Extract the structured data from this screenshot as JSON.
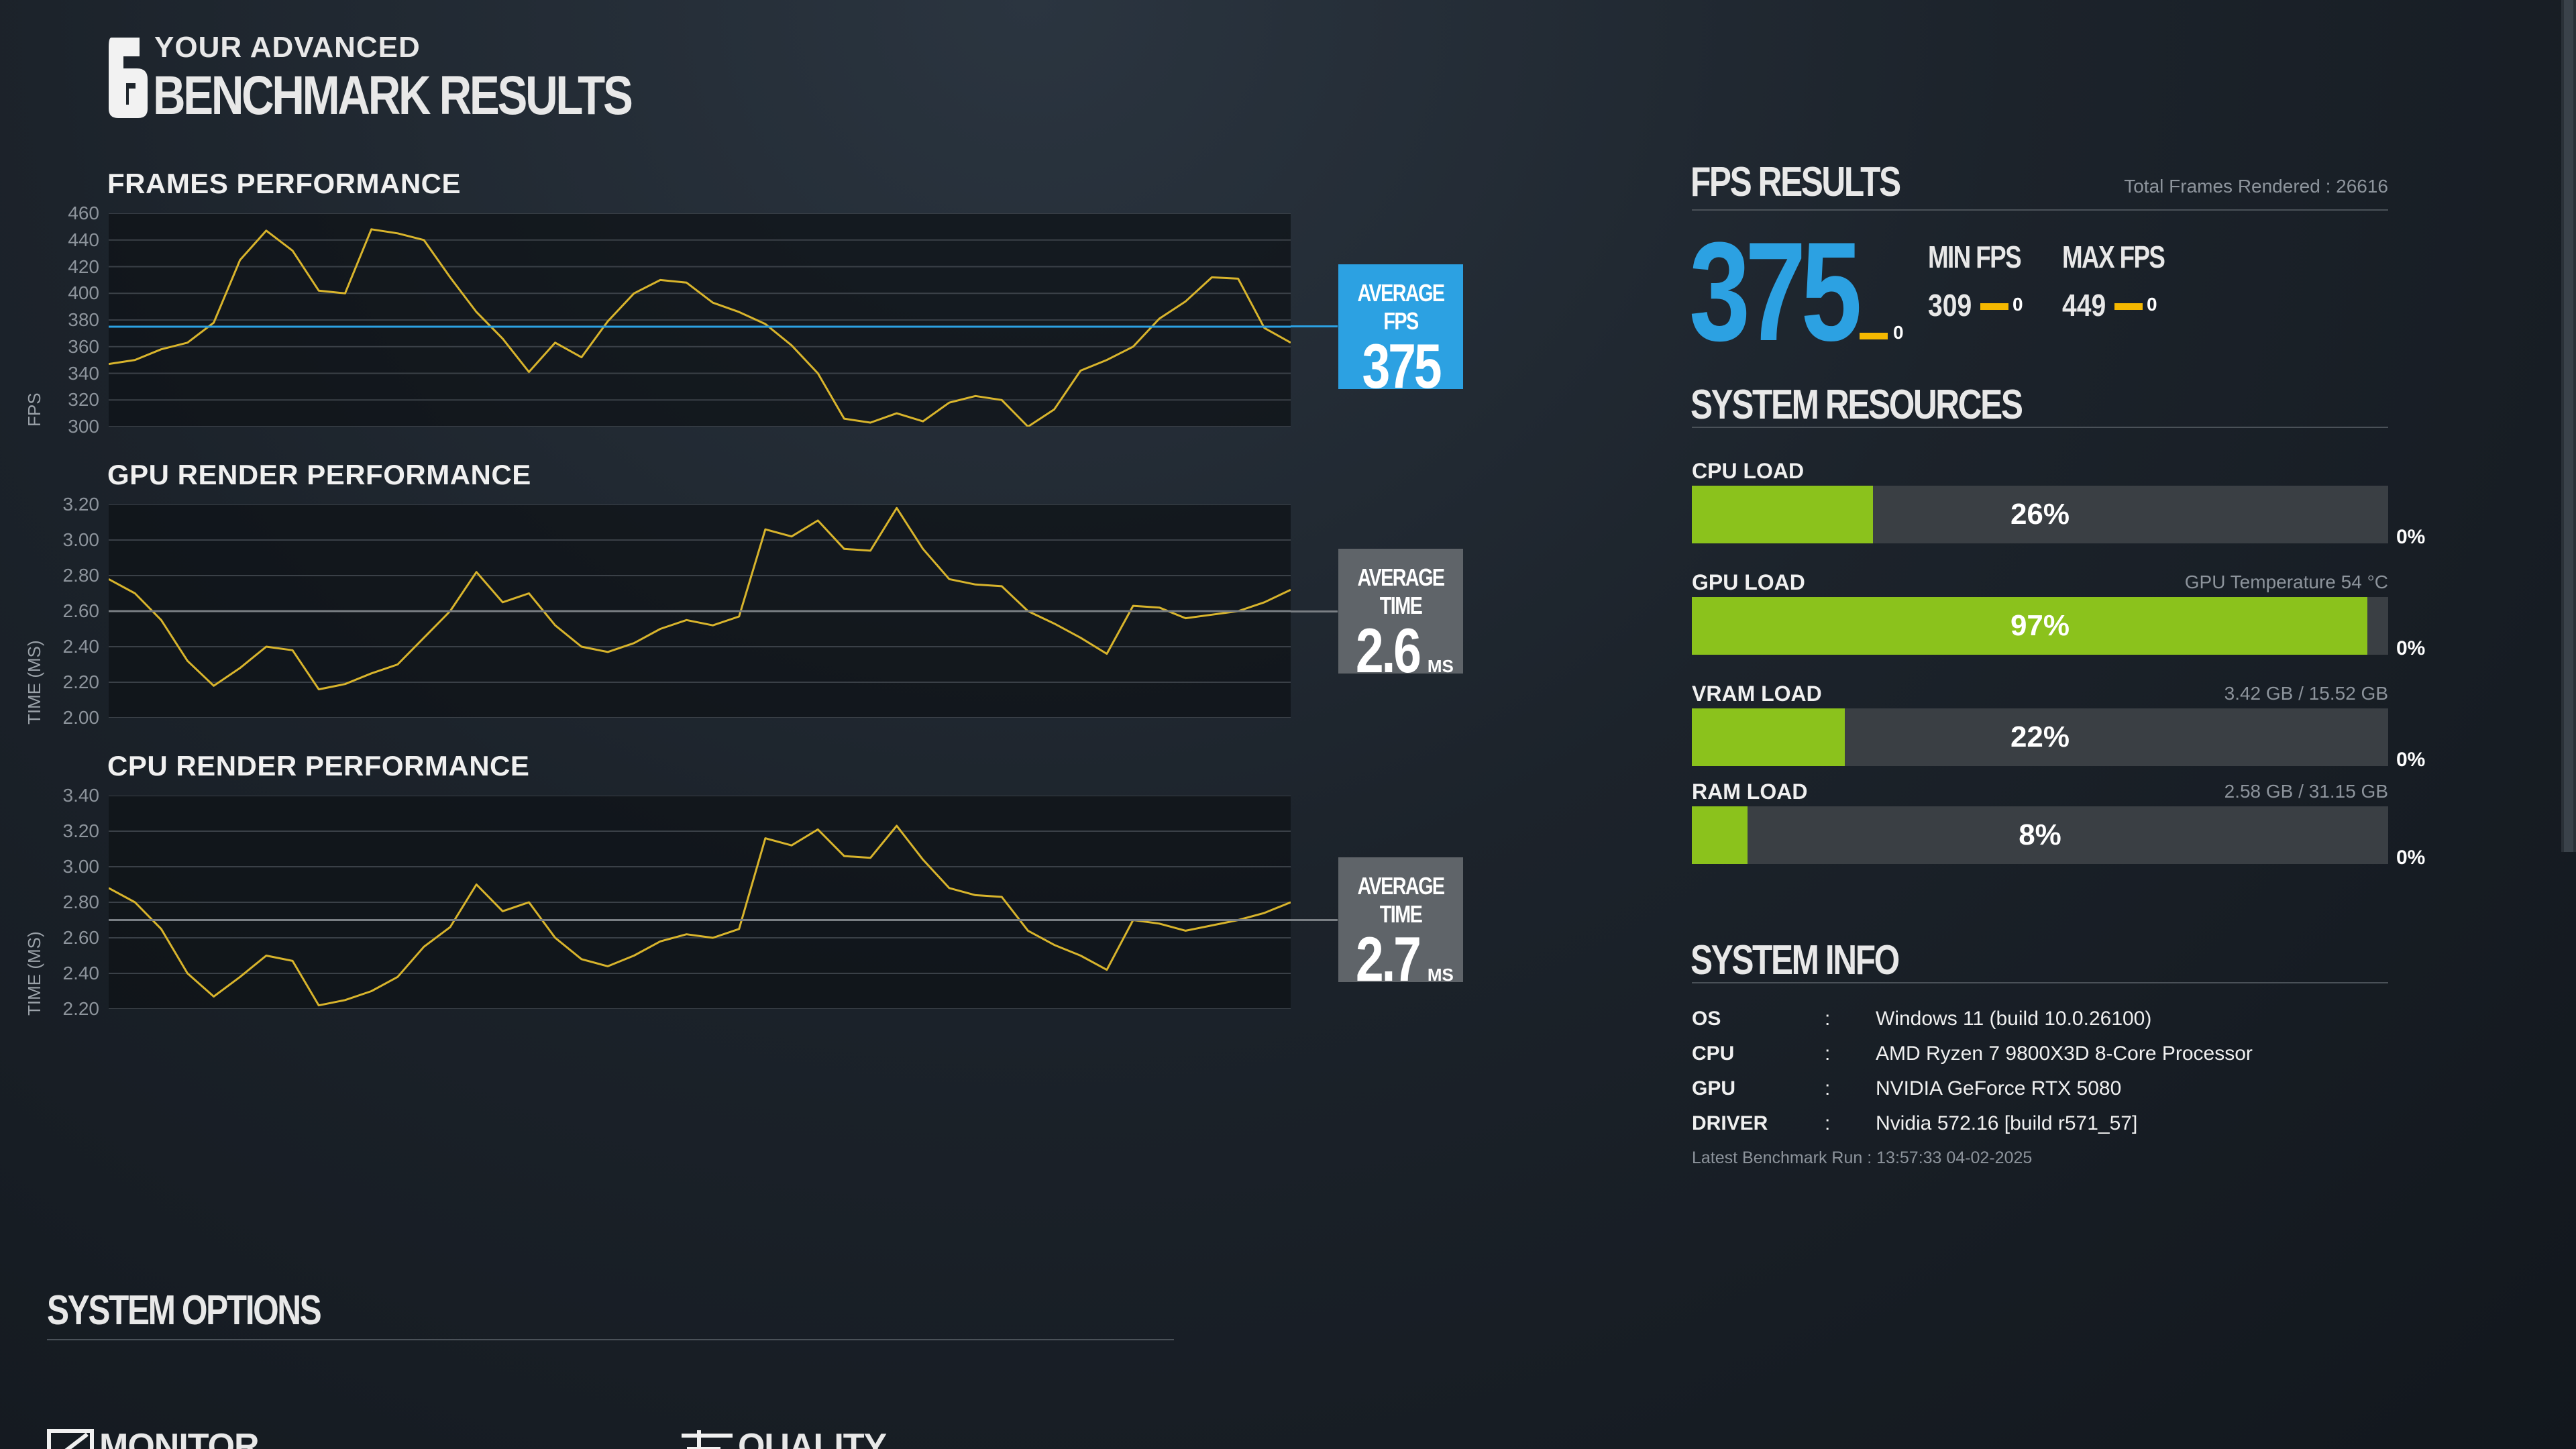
{
  "header": {
    "line1": "YOUR ADVANCED",
    "line2": "BENCHMARK RESULTS",
    "logo_icon": "siege-six-logo-icon"
  },
  "frames": {
    "title": "FRAMES PERFORMANCE",
    "yaxis_title": "FPS",
    "yticks": [
      "460",
      "440",
      "420",
      "400",
      "380",
      "360",
      "340",
      "320",
      "300"
    ],
    "avg_label": "AVERAGE FPS",
    "avg_value": "375",
    "avg_color": "#2ca1e2",
    "chart_data": {
      "type": "line",
      "ylim": [
        300,
        460
      ],
      "avg": 375,
      "x": [
        0,
        20,
        40,
        60,
        80,
        100,
        120,
        140,
        160,
        180,
        200,
        220,
        240,
        260,
        280,
        300,
        320,
        340,
        360,
        380,
        400,
        420,
        440,
        460,
        480,
        500,
        520,
        540,
        560,
        580,
        600,
        620,
        640,
        660,
        680,
        700,
        720,
        740,
        760,
        780,
        800,
        820,
        840,
        860,
        880,
        900
      ],
      "values": [
        347,
        350,
        358,
        363,
        378,
        425,
        447,
        432,
        402,
        400,
        448,
        445,
        440,
        412,
        386,
        366,
        341,
        363,
        352,
        379,
        400,
        410,
        408,
        393,
        386,
        377,
        361,
        340,
        306,
        303,
        310,
        304,
        318,
        323,
        320,
        300,
        313,
        342,
        350,
        360,
        381,
        394,
        412,
        411,
        374,
        363
      ]
    }
  },
  "gpu": {
    "title": "GPU RENDER PERFORMANCE",
    "yaxis_title": "TIME (MS)",
    "yticks": [
      "3.20",
      "3.00",
      "2.80",
      "2.60",
      "2.40",
      "2.20",
      "2.00"
    ],
    "avg_label": "AVERAGE TIME",
    "avg_value": "2.6",
    "avg_unit": "MS",
    "avg_color": "#5f6469",
    "chart_data": {
      "type": "line",
      "ylim": [
        2.0,
        3.2
      ],
      "avg": 2.6,
      "x": [
        0,
        20,
        40,
        60,
        80,
        100,
        120,
        140,
        160,
        180,
        200,
        220,
        240,
        260,
        280,
        300,
        320,
        340,
        360,
        380,
        400,
        420,
        440,
        460,
        480,
        500,
        520,
        540,
        560,
        580,
        600,
        620,
        640,
        660,
        680,
        700,
        720,
        740,
        760,
        780,
        800,
        820,
        840,
        860,
        880,
        900
      ],
      "values": [
        2.78,
        2.7,
        2.55,
        2.32,
        2.18,
        2.28,
        2.4,
        2.38,
        2.16,
        2.19,
        2.25,
        2.3,
        2.45,
        2.6,
        2.82,
        2.65,
        2.7,
        2.52,
        2.4,
        2.37,
        2.42,
        2.5,
        2.55,
        2.52,
        2.57,
        3.06,
        3.02,
        3.11,
        2.95,
        2.94,
        3.18,
        2.95,
        2.78,
        2.75,
        2.74,
        2.6,
        2.53,
        2.45,
        2.36,
        2.63,
        2.62,
        2.56,
        2.58,
        2.6,
        2.65,
        2.72
      ]
    }
  },
  "cpu": {
    "title": "CPU RENDER PERFORMANCE",
    "yaxis_title": "TIME (MS)",
    "yticks": [
      "3.40",
      "3.20",
      "3.00",
      "2.80",
      "2.60",
      "2.40",
      "2.20"
    ],
    "avg_label": "AVERAGE TIME",
    "avg_value": "2.7",
    "avg_unit": "MS",
    "avg_color": "#5f6469",
    "chart_data": {
      "type": "line",
      "ylim": [
        2.2,
        3.4
      ],
      "avg": 2.7,
      "x": [
        0,
        20,
        40,
        60,
        80,
        100,
        120,
        140,
        160,
        180,
        200,
        220,
        240,
        260,
        280,
        300,
        320,
        340,
        360,
        380,
        400,
        420,
        440,
        460,
        480,
        500,
        520,
        540,
        560,
        580,
        600,
        620,
        640,
        660,
        680,
        700,
        720,
        740,
        760,
        780,
        800,
        820,
        840,
        860,
        880,
        900
      ],
      "values": [
        2.88,
        2.8,
        2.65,
        2.4,
        2.27,
        2.38,
        2.5,
        2.47,
        2.22,
        2.25,
        2.3,
        2.38,
        2.55,
        2.66,
        2.9,
        2.75,
        2.8,
        2.6,
        2.48,
        2.44,
        2.5,
        2.58,
        2.62,
        2.6,
        2.65,
        3.16,
        3.12,
        3.21,
        3.06,
        3.05,
        3.23,
        3.04,
        2.88,
        2.84,
        2.83,
        2.64,
        2.56,
        2.5,
        2.42,
        2.7,
        2.68,
        2.64,
        2.67,
        2.7,
        2.74,
        2.8
      ]
    }
  },
  "fps_results": {
    "title": "FPS RESULTS",
    "total_frames": "Total Frames Rendered : 26616",
    "big_value": "375",
    "big_zero": "0",
    "min_label": "MIN FPS",
    "min_value": "309",
    "min_zero": "0",
    "max_label": "MAX FPS",
    "max_value": "449",
    "max_zero": "0",
    "dash_color": "#f5b800"
  },
  "system_resources": {
    "title": "SYSTEM RESOURCES",
    "bar_color": "#8bc21c",
    "items": [
      {
        "label": "CPU LOAD",
        "side": "",
        "pct": "26%",
        "fill": 0.26,
        "min": "0%"
      },
      {
        "label": "GPU LOAD",
        "side": "GPU Temperature 54 °C",
        "pct": "97%",
        "fill": 0.97,
        "min": "0%"
      },
      {
        "label": "VRAM LOAD",
        "side": "3.42 GB / 15.52 GB",
        "pct": "22%",
        "fill": 0.22,
        "min": "0%"
      },
      {
        "label": "RAM LOAD",
        "side": "2.58 GB / 31.15 GB",
        "pct": "8%",
        "fill": 0.08,
        "min": "0%"
      }
    ]
  },
  "system_info": {
    "title": "SYSTEM INFO",
    "rows": [
      {
        "key": "OS",
        "colon": ":",
        "value": "Windows 11 (build 10.0.26100)"
      },
      {
        "key": "CPU",
        "colon": ":",
        "value": "AMD Ryzen 7 9800X3D 8-Core Processor"
      },
      {
        "key": "GPU",
        "colon": ":",
        "value": "NVIDIA GeForce RTX 5080"
      },
      {
        "key": "DRIVER",
        "colon": ":",
        "value": "Nvidia 572.16 [build r571_57]"
      }
    ],
    "latest_run": "Latest Benchmark Run : 13:57:33 04-02-2025"
  },
  "system_options": {
    "title": "SYSTEM OPTIONS",
    "tabs": [
      {
        "label": "MONITOR",
        "icon": "monitor-icon"
      },
      {
        "label": "QUALITY",
        "icon": "quality-icon"
      }
    ]
  }
}
